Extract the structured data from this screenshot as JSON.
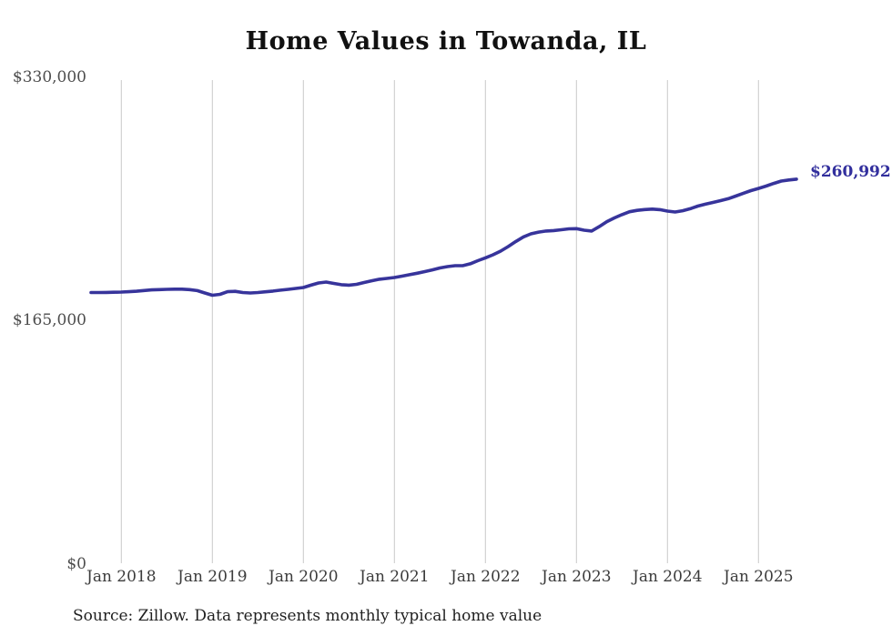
{
  "title": "Home Values in Towanda, IL",
  "source_note": "Source: Zillow. Data represents monthly typical home value",
  "colors": {
    "line": "#37349b",
    "end_label": "#322f9d",
    "grid": "#c9c9c9",
    "x_tick_label": "#3b3b3b",
    "y_tick_label": "#4d4d4d",
    "title": "#111111",
    "source": "#1f1f1f",
    "background": "#ffffff"
  },
  "chart_data": {
    "type": "line",
    "title": "Home Values in Towanda, IL",
    "xlabel": "",
    "ylabel": "",
    "ylim": [
      0,
      330000
    ],
    "grid": "vertical-only",
    "legend": "none",
    "y_tick_labels": [
      "$0",
      "$165,000",
      "$330,000"
    ],
    "y_tick_values": [
      0,
      165000,
      330000
    ],
    "x_tick_labels": [
      "Jan 2018",
      "Jan 2019",
      "Jan 2020",
      "Jan 2021",
      "Jan 2022",
      "Jan 2023",
      "Jan 2024",
      "Jan 2025"
    ],
    "final_value": 260992,
    "final_value_label": "$260,992",
    "x": [
      "2017-09",
      "2017-10",
      "2017-11",
      "2017-12",
      "2018-01",
      "2018-02",
      "2018-03",
      "2018-04",
      "2018-05",
      "2018-06",
      "2018-07",
      "2018-08",
      "2018-09",
      "2018-10",
      "2018-11",
      "2018-12",
      "2019-01",
      "2019-02",
      "2019-03",
      "2019-04",
      "2019-05",
      "2019-06",
      "2019-07",
      "2019-08",
      "2019-09",
      "2019-10",
      "2019-11",
      "2019-12",
      "2020-01",
      "2020-02",
      "2020-03",
      "2020-04",
      "2020-05",
      "2020-06",
      "2020-07",
      "2020-08",
      "2020-09",
      "2020-10",
      "2020-11",
      "2020-12",
      "2021-01",
      "2021-02",
      "2021-03",
      "2021-04",
      "2021-05",
      "2021-06",
      "2021-07",
      "2021-08",
      "2021-09",
      "2021-10",
      "2021-11",
      "2021-12",
      "2022-01",
      "2022-02",
      "2022-03",
      "2022-04",
      "2022-05",
      "2022-06",
      "2022-07",
      "2022-08",
      "2022-09",
      "2022-10",
      "2022-11",
      "2022-12",
      "2023-01",
      "2023-02",
      "2023-03",
      "2023-04",
      "2023-05",
      "2023-06",
      "2023-07",
      "2023-08",
      "2023-09",
      "2023-10",
      "2023-11",
      "2023-12",
      "2024-01",
      "2024-02",
      "2024-03",
      "2024-04",
      "2024-05",
      "2024-06",
      "2024-07",
      "2024-08",
      "2024-09",
      "2024-10",
      "2024-11",
      "2024-12",
      "2025-01",
      "2025-02",
      "2025-03",
      "2025-04",
      "2025-05",
      "2025-06"
    ],
    "values": [
      184100,
      184100,
      184200,
      184300,
      184400,
      184700,
      185000,
      185500,
      185900,
      186100,
      186300,
      186400,
      186400,
      186100,
      185400,
      183800,
      182300,
      182900,
      184700,
      184900,
      184100,
      183800,
      184100,
      184600,
      185100,
      185700,
      186300,
      186900,
      187500,
      189100,
      190600,
      191200,
      190300,
      189400,
      189100,
      189700,
      190900,
      192100,
      193100,
      193700,
      194300,
      195200,
      196200,
      197200,
      198300,
      199500,
      200800,
      201700,
      202300,
      202300,
      203600,
      205700,
      207600,
      209700,
      212200,
      215300,
      218700,
      221800,
      223900,
      225100,
      225800,
      226100,
      226700,
      227300,
      227400,
      226400,
      225800,
      228800,
      232200,
      234700,
      236900,
      238900,
      239800,
      240400,
      240700,
      240300,
      239300,
      238700,
      239600,
      240900,
      242700,
      244000,
      245200,
      246400,
      247700,
      249500,
      251400,
      253200,
      254700,
      256300,
      258100,
      259700,
      260400,
      260992
    ]
  }
}
